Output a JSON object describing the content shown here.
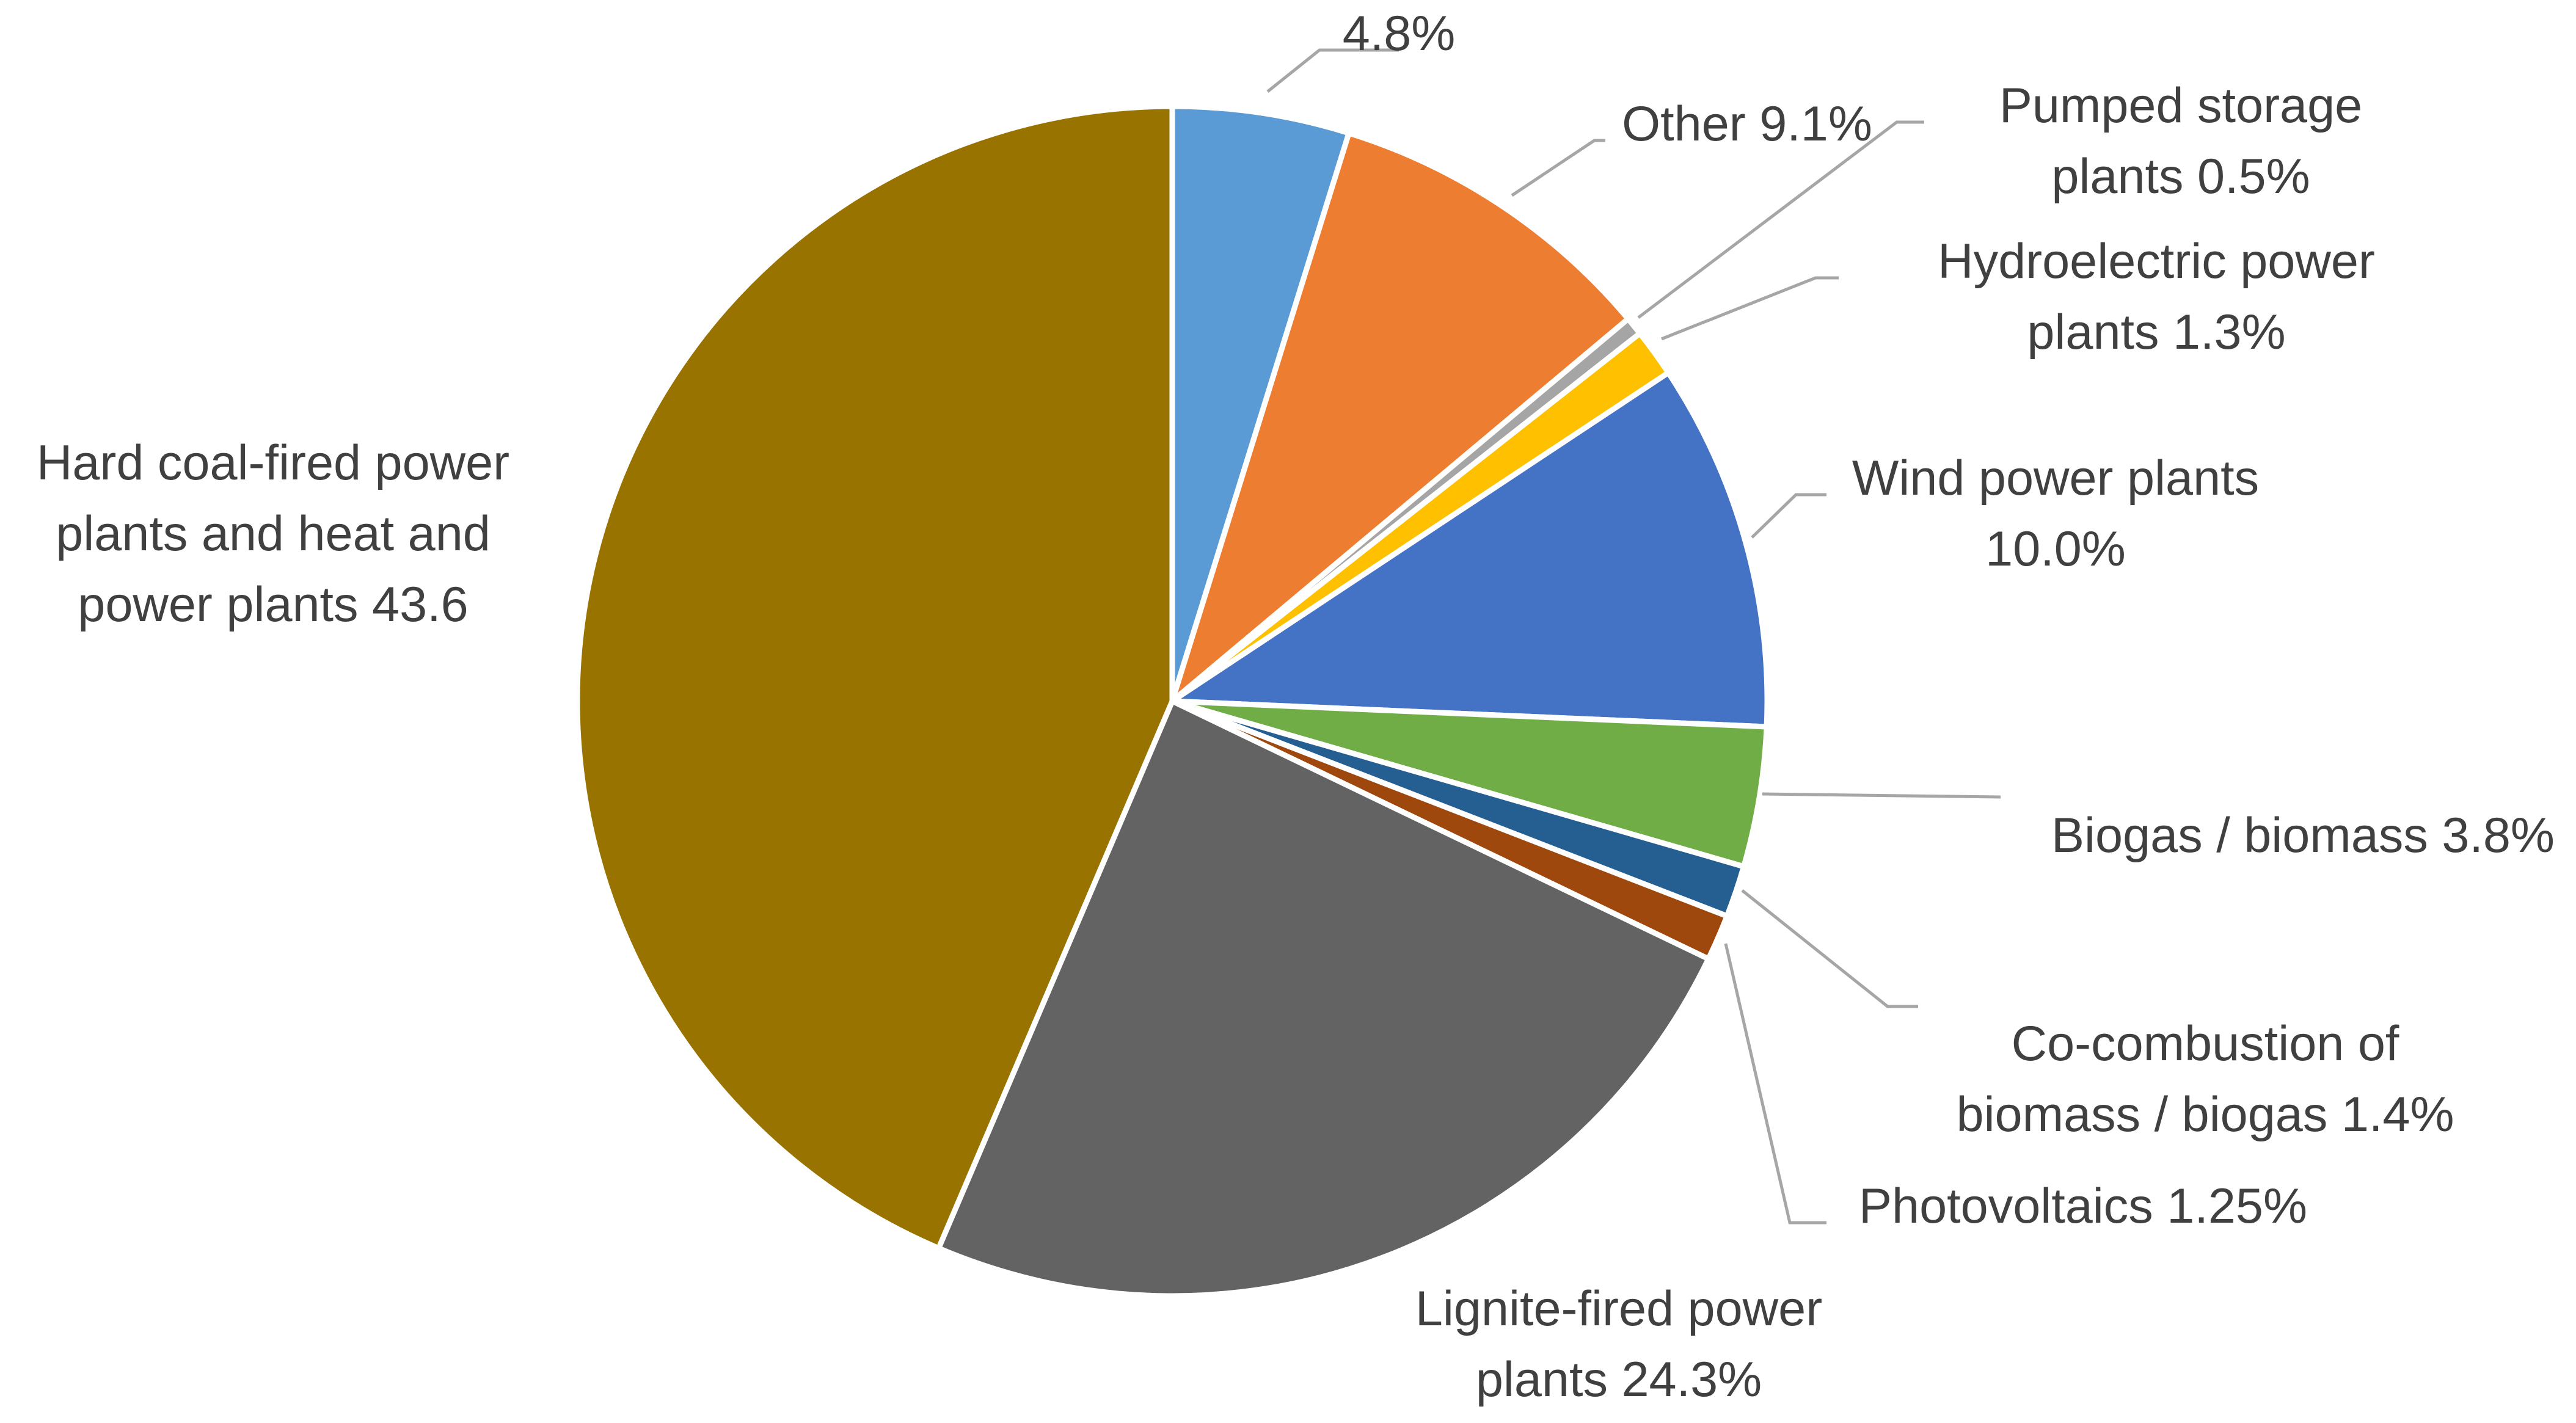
{
  "chart_data": {
    "type": "pie",
    "title": "",
    "start_angle_deg": 0,
    "direction": "clockwise",
    "legend": "none",
    "slices": [
      {
        "key": "unlabeled",
        "value": 4.8,
        "color": "#5b9bd5",
        "label_lines": [
          "4.8%"
        ]
      },
      {
        "key": "other",
        "value": 9.1,
        "color": "#ed7d31",
        "label_lines": [
          "Other 9.1%"
        ]
      },
      {
        "key": "pumped-storage",
        "value": 0.5,
        "color": "#a5a5a5",
        "label_lines": [
          "Pumped storage",
          "plants 0.5%"
        ]
      },
      {
        "key": "hydroelectric",
        "value": 1.3,
        "color": "#ffc000",
        "label_lines": [
          "Hydroelectric power",
          "plants 1.3%"
        ]
      },
      {
        "key": "wind",
        "value": 10.0,
        "color": "#4472c4",
        "label_lines": [
          "Wind power plants",
          "10.0%"
        ]
      },
      {
        "key": "biogas",
        "value": 3.8,
        "color": "#70ad47",
        "label_lines": [
          "Biogas / biomass 3.8%"
        ]
      },
      {
        "key": "co-combustion",
        "value": 1.4,
        "color": "#255e91",
        "label_lines": [
          "Co-combustion of",
          "biomass / biogas 1.4%"
        ]
      },
      {
        "key": "photovoltaics",
        "value": 1.25,
        "color": "#9e480e",
        "label_lines": [
          "Photovoltaics 1.25%"
        ]
      },
      {
        "key": "lignite",
        "value": 24.3,
        "color": "#636363",
        "label_lines": [
          "Lignite-fired power",
          "plants 24.3%"
        ]
      },
      {
        "key": "hard-coal",
        "value": 43.6,
        "color": "#997300",
        "label_lines": [
          "Hard coal-fired power",
          "plants and heat and",
          "power plants 43.6"
        ]
      }
    ]
  }
}
